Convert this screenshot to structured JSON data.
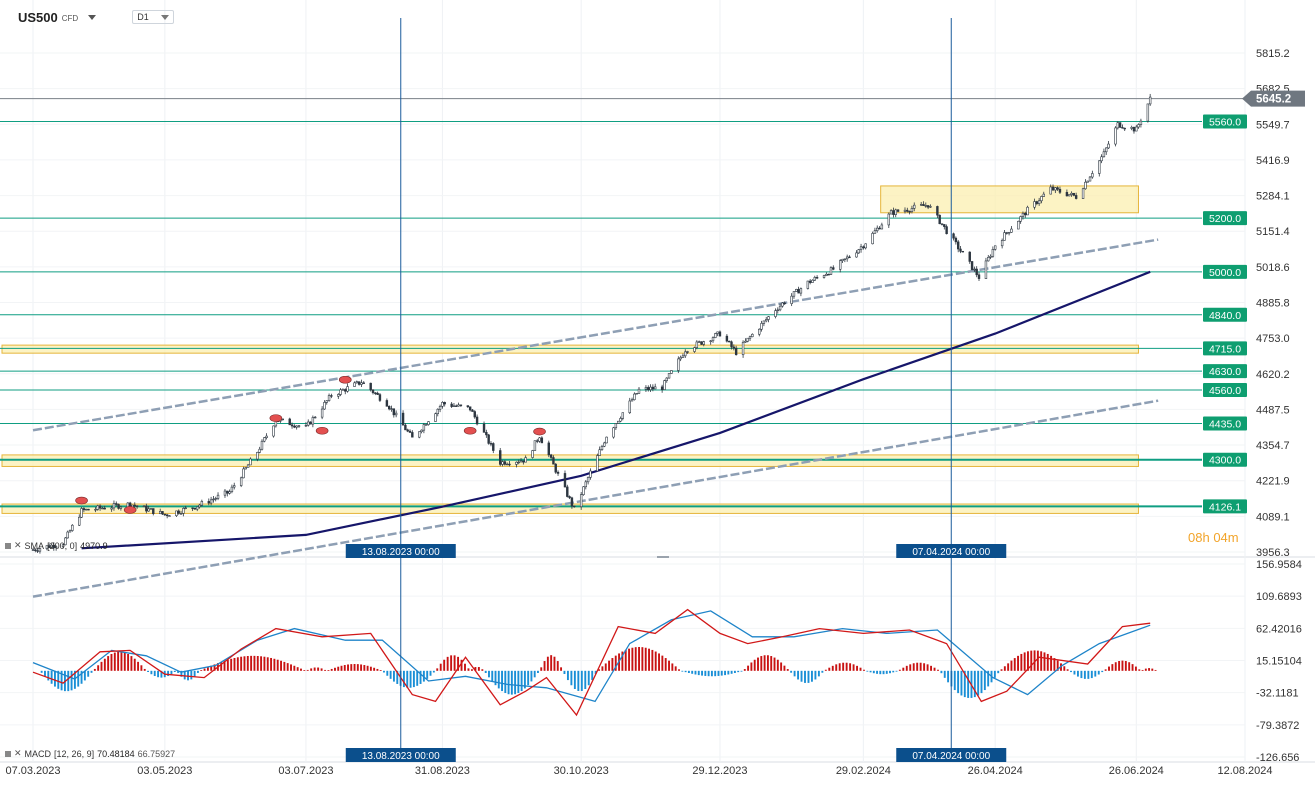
{
  "header": {
    "symbol": "US500",
    "symbol_type": "CFD",
    "timeframe": "D1"
  },
  "countdown": {
    "hours": "08",
    "h": "h",
    "minutes": "04",
    "m": "m"
  },
  "indicators": {
    "sma": {
      "prefix": "SMA",
      "params": "[200, 0]",
      "value": "4970.9"
    },
    "macd": {
      "name": "MACD",
      "params": "[12, 26, 9]",
      "value1": "70.48184",
      "value2": "66.75927"
    }
  },
  "chart_data": [
    {
      "type": "candlestick",
      "title": "US500 D1",
      "y_axis": {
        "ticks": [
          "5815.2",
          "5682.5",
          "5549.7",
          "5416.9",
          "5284.1",
          "5151.4",
          "5018.6",
          "4885.8",
          "4753.0",
          "4620.2",
          "4487.5",
          "4354.7",
          "4221.9",
          "4089.1",
          "3956.3"
        ],
        "range": [
          3956.3,
          5880
        ]
      },
      "x_axis": {
        "ticks": [
          "07.03.2023",
          "03.05.2023",
          "03.07.2023",
          "31.08.2023",
          "30.10.2023",
          "29.12.2023",
          "29.02.2024",
          "26.04.2024",
          "26.06.2024",
          "12.08.2024"
        ]
      },
      "current_price": "5645.2",
      "horizontal_levels": [
        "5560.0",
        "5200.0",
        "5000.0",
        "4840.0",
        "4715.0",
        "4630.0",
        "4560.0",
        "4435.0",
        "4300.0",
        "4126.1"
      ],
      "zones": [
        {
          "from": "03.2023",
          "to": "06.2024",
          "low": 4100,
          "high": 4135
        },
        {
          "from": "03.2023",
          "to": "06.2024",
          "low": 4275,
          "high": 4318
        },
        {
          "from": "03.2023",
          "to": "06.2024",
          "low": 4697,
          "high": 4727
        },
        {
          "from": "03.2024",
          "to": "06.2024",
          "low": 5220,
          "high": 5320
        }
      ],
      "vertical_markers": [
        "13.08.2023 00:00",
        "07.04.2024 00:00"
      ],
      "price_path": [
        {
          "x": "07.03.2023",
          "y": 3965
        },
        {
          "x": "20.03.2023",
          "y": 3990
        },
        {
          "x": "28.03.2023",
          "y": 4110
        },
        {
          "x": "18.04.2023",
          "y": 4135
        },
        {
          "x": "03.05.2023",
          "y": 4095
        },
        {
          "x": "16.05.2023",
          "y": 4125
        },
        {
          "x": "31.05.2023",
          "y": 4180
        },
        {
          "x": "12.06.2023",
          "y": 4330
        },
        {
          "x": "20.06.2023",
          "y": 4450
        },
        {
          "x": "03.07.2023",
          "y": 4420
        },
        {
          "x": "14.07.2023",
          "y": 4540
        },
        {
          "x": "27.07.2023",
          "y": 4590
        },
        {
          "x": "07.08.2023",
          "y": 4510
        },
        {
          "x": "18.08.2023",
          "y": 4380
        },
        {
          "x": "31.08.2023",
          "y": 4510
        },
        {
          "x": "12.09.2023",
          "y": 4490
        },
        {
          "x": "25.09.2023",
          "y": 4290
        },
        {
          "x": "06.10.2023",
          "y": 4300
        },
        {
          "x": "12.10.2023",
          "y": 4390
        },
        {
          "x": "27.10.2023",
          "y": 4115
        },
        {
          "x": "10.11.2023",
          "y": 4390
        },
        {
          "x": "24.11.2023",
          "y": 4560
        },
        {
          "x": "04.12.2023",
          "y": 4570
        },
        {
          "x": "14.12.2023",
          "y": 4710
        },
        {
          "x": "29.12.2023",
          "y": 4770
        },
        {
          "x": "05.01.2024",
          "y": 4700
        },
        {
          "x": "22.01.2024",
          "y": 4860
        },
        {
          "x": "05.02.2024",
          "y": 4960
        },
        {
          "x": "16.02.2024",
          "y": 5010
        },
        {
          "x": "29.02.2024",
          "y": 5100
        },
        {
          "x": "12.03.2024",
          "y": 5220
        },
        {
          "x": "28.03.2024",
          "y": 5250
        },
        {
          "x": "19.04.2024",
          "y": 4980
        },
        {
          "x": "26.04.2024",
          "y": 5100
        },
        {
          "x": "10.05.2024",
          "y": 5230
        },
        {
          "x": "20.05.2024",
          "y": 5310
        },
        {
          "x": "31.05.2024",
          "y": 5280
        },
        {
          "x": "12.06.2024",
          "y": 5440
        },
        {
          "x": "18.06.2024",
          "y": 5550
        },
        {
          "x": "26.06.2024",
          "y": 5530
        },
        {
          "x": "02.07.2024",
          "y": 5645
        }
      ],
      "sma_200_path": [
        {
          "x": "28.03.2023",
          "y": 3970
        },
        {
          "x": "03.07.2023",
          "y": 4020
        },
        {
          "x": "31.08.2023",
          "y": 4125
        },
        {
          "x": "30.10.2023",
          "y": 4240
        },
        {
          "x": "29.12.2023",
          "y": 4400
        },
        {
          "x": "29.02.2024",
          "y": 4600
        },
        {
          "x": "26.04.2024",
          "y": 4770
        },
        {
          "x": "02.07.2024",
          "y": 5000
        }
      ],
      "trend_lines": [
        {
          "from": {
            "x": "07.03.2023",
            "y": 4410
          },
          "to": {
            "x": "02.07.2024",
            "y": 5120
          }
        },
        {
          "from": {
            "x": "07.03.2023",
            "y": 3790
          },
          "to": {
            "x": "02.07.2024",
            "y": 4520
          }
        }
      ]
    },
    {
      "type": "macd",
      "title": "MACD [12, 26, 9]",
      "y_axis": {
        "ticks": [
          "156.9584",
          "109.6893",
          "62.42016",
          "15.15104",
          "-32.1181",
          "-79.3872",
          "-126.656"
        ],
        "range": [
          -126.656,
          156.9584
        ]
      },
      "macd_path": [
        {
          "x": "07.03.2023",
          "y": -2
        },
        {
          "x": "20.03.2023",
          "y": -18
        },
        {
          "x": "05.04.2023",
          "y": 28
        },
        {
          "x": "18.04.2023",
          "y": 30
        },
        {
          "x": "03.05.2023",
          "y": -5
        },
        {
          "x": "20.05.2023",
          "y": -10
        },
        {
          "x": "05.06.2023",
          "y": 32
        },
        {
          "x": "20.06.2023",
          "y": 62
        },
        {
          "x": "10.07.2023",
          "y": 50
        },
        {
          "x": "31.07.2023",
          "y": 55
        },
        {
          "x": "18.08.2023",
          "y": -35
        },
        {
          "x": "28.08.2023",
          "y": -45
        },
        {
          "x": "10.09.2023",
          "y": 20
        },
        {
          "x": "25.09.2023",
          "y": -50
        },
        {
          "x": "06.10.2023",
          "y": -30
        },
        {
          "x": "15.10.2023",
          "y": -10
        },
        {
          "x": "28.10.2023",
          "y": -65
        },
        {
          "x": "15.11.2023",
          "y": 65
        },
        {
          "x": "01.12.2023",
          "y": 55
        },
        {
          "x": "15.12.2023",
          "y": 90
        },
        {
          "x": "29.12.2023",
          "y": 55
        },
        {
          "x": "10.01.2024",
          "y": 40
        },
        {
          "x": "25.01.2024",
          "y": 50
        },
        {
          "x": "10.02.2024",
          "y": 62
        },
        {
          "x": "29.02.2024",
          "y": 55
        },
        {
          "x": "20.03.2024",
          "y": 60
        },
        {
          "x": "05.04.2024",
          "y": 40
        },
        {
          "x": "20.04.2024",
          "y": -45
        },
        {
          "x": "01.05.2024",
          "y": -30
        },
        {
          "x": "15.05.2024",
          "y": 20
        },
        {
          "x": "05.06.2024",
          "y": 10
        },
        {
          "x": "20.06.2024",
          "y": 65
        },
        {
          "x": "02.07.2024",
          "y": 70
        }
      ],
      "signal_path": [
        {
          "x": "07.03.2023",
          "y": 12
        },
        {
          "x": "25.03.2023",
          "y": -12
        },
        {
          "x": "10.04.2023",
          "y": 30
        },
        {
          "x": "25.04.2023",
          "y": 22
        },
        {
          "x": "10.05.2023",
          "y": -2
        },
        {
          "x": "25.05.2023",
          "y": 8
        },
        {
          "x": "12.06.2023",
          "y": 45
        },
        {
          "x": "28.06.2023",
          "y": 62
        },
        {
          "x": "20.07.2023",
          "y": 45
        },
        {
          "x": "05.08.2023",
          "y": 45
        },
        {
          "x": "25.08.2023",
          "y": -15
        },
        {
          "x": "10.09.2023",
          "y": -8
        },
        {
          "x": "28.09.2023",
          "y": -20
        },
        {
          "x": "15.10.2023",
          "y": -25
        },
        {
          "x": "05.11.2023",
          "y": -45
        },
        {
          "x": "20.11.2023",
          "y": 40
        },
        {
          "x": "08.12.2023",
          "y": 75
        },
        {
          "x": "25.12.2023",
          "y": 88
        },
        {
          "x": "12.01.2024",
          "y": 50
        },
        {
          "x": "30.01.2024",
          "y": 50
        },
        {
          "x": "20.02.2024",
          "y": 62
        },
        {
          "x": "10.03.2024",
          "y": 55
        },
        {
          "x": "01.04.2024",
          "y": 60
        },
        {
          "x": "25.04.2024",
          "y": -10
        },
        {
          "x": "10.05.2024",
          "y": -35
        },
        {
          "x": "25.05.2024",
          "y": 8
        },
        {
          "x": "10.06.2024",
          "y": 40
        },
        {
          "x": "02.07.2024",
          "y": 67
        }
      ],
      "histogram_segments": [
        {
          "from": "10.03.2023",
          "to": "02.04.2023",
          "peak": -30
        },
        {
          "from": "02.04.2023",
          "to": "25.04.2023",
          "peak": 28
        },
        {
          "from": "25.04.2023",
          "to": "08.05.2023",
          "peak": -10
        },
        {
          "from": "08.05.2023",
          "to": "18.05.2023",
          "peak": -14
        },
        {
          "from": "18.05.2023",
          "to": "03.07.2023",
          "peak": 22
        },
        {
          "from": "03.07.2023",
          "to": "12.07.2023",
          "peak": 5
        },
        {
          "from": "12.07.2023",
          "to": "05.08.2023",
          "peak": 10
        },
        {
          "from": "05.08.2023",
          "to": "28.08.2023",
          "peak": -25
        },
        {
          "from": "28.08.2023",
          "to": "12.09.2023",
          "peak": 23
        },
        {
          "from": "12.09.2023",
          "to": "18.09.2023",
          "peak": 6
        },
        {
          "from": "18.09.2023",
          "to": "12.10.2023",
          "peak": -35
        },
        {
          "from": "12.10.2023",
          "to": "22.10.2023",
          "peak": 23
        },
        {
          "from": "22.10.2023",
          "to": "06.11.2023",
          "peak": -30
        },
        {
          "from": "06.11.2023",
          "to": "12.12.2023",
          "peak": 35
        },
        {
          "from": "12.12.2023",
          "to": "08.01.2024",
          "peak": -8
        },
        {
          "from": "08.01.2024",
          "to": "28.01.2024",
          "peak": 23
        },
        {
          "from": "28.01.2024",
          "to": "12.02.2024",
          "peak": -18
        },
        {
          "from": "12.02.2024",
          "to": "01.03.2024",
          "peak": 12
        },
        {
          "from": "01.03.2024",
          "to": "15.03.2024",
          "peak": -5
        },
        {
          "from": "15.03.2024",
          "to": "02.04.2024",
          "peak": 12
        },
        {
          "from": "02.04.2024",
          "to": "28.04.2024",
          "peak": -40
        },
        {
          "from": "28.04.2024",
          "to": "28.05.2024",
          "peak": 30
        },
        {
          "from": "28.05.2024",
          "to": "12.06.2024",
          "peak": -12
        },
        {
          "from": "12.06.2024",
          "to": "28.06.2024",
          "peak": 15
        },
        {
          "from": "28.06.2024",
          "to": "05.07.2024",
          "peak": 4
        }
      ]
    }
  ],
  "colors": {
    "candle": "#2d3640",
    "level_line": "#0f9e82",
    "level_label_bg": "#0e9e70",
    "zone_fill": "#fbefb0",
    "zone_border": "#e5b53a",
    "sma": "#16166a",
    "trend_line": "#8e9fb4",
    "vertical_marker": "#1a5c9c",
    "marker_label_bg": "#0b4f8c",
    "price_label_bg": "#6f7780",
    "macd_line": "#d11818",
    "signal_line": "#1e84c9",
    "hist_up": "#c81212",
    "hist_down": "#1a8fd6",
    "countdown": "#f2a42a",
    "pivot_marker": "#e35050"
  }
}
